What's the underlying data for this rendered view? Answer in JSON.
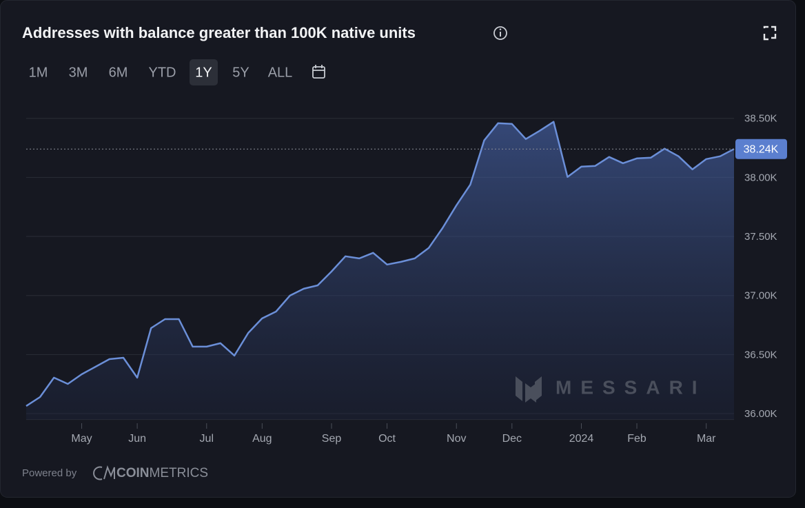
{
  "ui": {
    "ranges": [
      "1M",
      "3M",
      "6M",
      "YTD",
      "1Y",
      "5Y",
      "ALL"
    ],
    "selected_range": "1Y",
    "watermark": "MESSARI",
    "powered_by": "Powered by",
    "brand_bold": "COIN",
    "brand_light": "METRICS"
  },
  "chart_data": {
    "type": "area",
    "title": "Addresses with balance greater than 100K native units",
    "categories": [
      null,
      null,
      null,
      null,
      "May",
      null,
      null,
      null,
      "Jun",
      null,
      null,
      null,
      null,
      "Jul",
      null,
      null,
      null,
      "Aug",
      null,
      null,
      null,
      null,
      "Sep",
      null,
      null,
      null,
      "Oct",
      null,
      null,
      null,
      null,
      "Nov",
      null,
      null,
      null,
      "Dec",
      null,
      null,
      null,
      null,
      "2024",
      null,
      null,
      null,
      "Feb",
      null,
      null,
      null,
      null,
      "Mar",
      null,
      null
    ],
    "series": [
      {
        "color": "#6b8fd8",
        "values": [
          36064,
          36140,
          36304,
          36251,
          36333,
          36397,
          36461,
          36473,
          36304,
          36724,
          36800,
          36800,
          36567,
          36567,
          36596,
          36491,
          36683,
          36806,
          36864,
          36999,
          37057,
          37086,
          37203,
          37332,
          37314,
          37361,
          37262,
          37285,
          37314,
          37402,
          37571,
          37764,
          37939,
          38313,
          38459,
          38453,
          38325,
          38395,
          38471,
          38004,
          38091,
          38097,
          38173,
          38120,
          38161,
          38167,
          38243,
          38179,
          38068,
          38155,
          38179,
          38240
        ],
        "value_labels": [
          null,
          null,
          null,
          null,
          null,
          null,
          null,
          null,
          null,
          null,
          null,
          null,
          null,
          null,
          null,
          null,
          null,
          null,
          null,
          null,
          null,
          null,
          null,
          null,
          null,
          null,
          null,
          null,
          null,
          null,
          null,
          null,
          null,
          null,
          null,
          null,
          null,
          null,
          null,
          null,
          null,
          null,
          null,
          null,
          null,
          null,
          null,
          null,
          null,
          null,
          null,
          "38.24K"
        ]
      }
    ],
    "ylim": [
      35950,
      38650
    ],
    "yticks": [
      {
        "value": 36000,
        "label": "36.00K"
      },
      {
        "value": 36500,
        "label": "36.50K"
      },
      {
        "value": 37000,
        "label": "37.00K"
      },
      {
        "value": 37500,
        "label": "37.50K"
      },
      {
        "value": 38000,
        "label": "38.00K"
      },
      {
        "value": 38500,
        "label": "38.50K"
      }
    ],
    "grid": true
  }
}
